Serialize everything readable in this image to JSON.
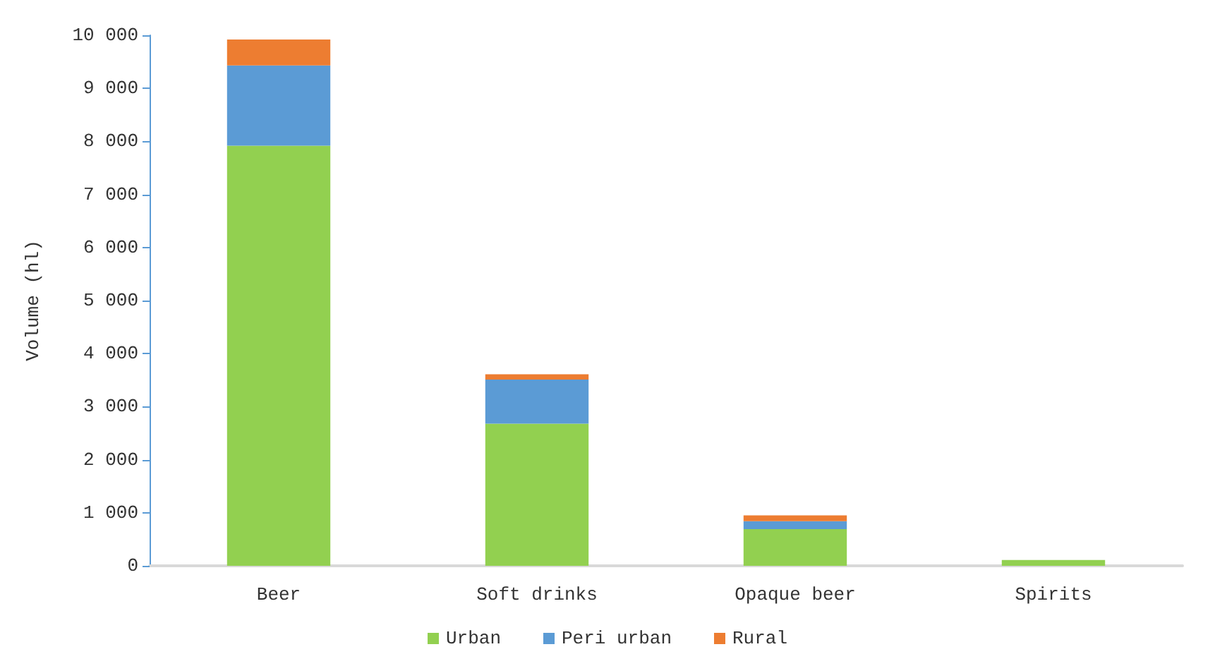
{
  "chart_data": {
    "type": "bar",
    "stacked": true,
    "ylabel": "Volume (hl)",
    "categories": [
      "Beer",
      "Soft drinks",
      "Opaque beer",
      "Spirits"
    ],
    "series": [
      {
        "name": "Urban",
        "color": "#92d050",
        "values": [
          7920,
          2680,
          690,
          110
        ]
      },
      {
        "name": "Peri urban",
        "color": "#5b9bd5",
        "values": [
          1510,
          830,
          150,
          0
        ]
      },
      {
        "name": "Rural",
        "color": "#ed7d31",
        "values": [
          490,
          100,
          110,
          0
        ]
      }
    ],
    "ylim": [
      0,
      10000
    ],
    "yticks": [
      {
        "value": 0,
        "label": "0"
      },
      {
        "value": 1000,
        "label": "1 000"
      },
      {
        "value": 2000,
        "label": "2 000"
      },
      {
        "value": 3000,
        "label": "3 000"
      },
      {
        "value": 4000,
        "label": "4 000"
      },
      {
        "value": 5000,
        "label": "5 000"
      },
      {
        "value": 6000,
        "label": "6 000"
      },
      {
        "value": 7000,
        "label": "7 000"
      },
      {
        "value": 8000,
        "label": "8 000"
      },
      {
        "value": 9000,
        "label": "9 000"
      },
      {
        "value": 10000,
        "label": "10 000"
      }
    ],
    "grid": false,
    "legend": "bottom"
  }
}
